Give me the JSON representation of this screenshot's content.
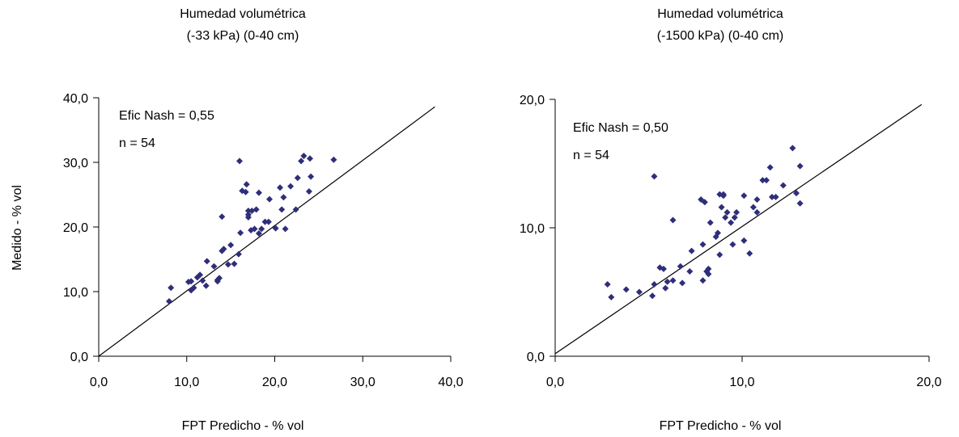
{
  "chart_data": [
    {
      "type": "scatter",
      "title": [
        "Humedad volumétrica",
        "(-33 kPa) (0-40 cm)"
      ],
      "xlabel": "FPT Predicho - % vol",
      "ylabel": "Medido - % vol",
      "xlim": [
        0,
        40
      ],
      "ylim": [
        0,
        40
      ],
      "xticks": [
        "0,0",
        "10,0",
        "20,0",
        "30,0",
        "40,0"
      ],
      "yticks": [
        "0,0",
        "10,0",
        "20,0",
        "30,0",
        "40,0"
      ],
      "annotations": [
        "Efic Nash = 0,55",
        "n = 54"
      ],
      "line": {
        "x": [
          0,
          38.2
        ],
        "y": [
          0,
          38.6
        ]
      },
      "marker_color": "#2e2e7a",
      "points": [
        [
          8.0,
          8.5
        ],
        [
          8.2,
          10.6
        ],
        [
          10.2,
          11.5
        ],
        [
          10.5,
          10.2
        ],
        [
          10.8,
          10.6
        ],
        [
          10.5,
          11.6
        ],
        [
          11.2,
          12.2
        ],
        [
          11.5,
          12.6
        ],
        [
          11.8,
          11.7
        ],
        [
          12.2,
          10.9
        ],
        [
          12.3,
          14.7
        ],
        [
          13.1,
          13.9
        ],
        [
          13.5,
          11.6
        ],
        [
          13.7,
          12.1
        ],
        [
          13.5,
          11.8
        ],
        [
          14.0,
          16.3
        ],
        [
          14.2,
          16.6
        ],
        [
          14.7,
          14.2
        ],
        [
          15.0,
          17.2
        ],
        [
          15.4,
          14.3
        ],
        [
          15.9,
          15.8
        ],
        [
          14.0,
          21.6
        ],
        [
          16.0,
          30.2
        ],
        [
          16.3,
          25.6
        ],
        [
          16.1,
          19.1
        ],
        [
          16.8,
          26.6
        ],
        [
          16.7,
          25.4
        ],
        [
          17.0,
          21.5
        ],
        [
          17.0,
          22.5
        ],
        [
          17.4,
          22.5
        ],
        [
          17.0,
          21.9
        ],
        [
          17.3,
          19.5
        ],
        [
          17.7,
          19.7
        ],
        [
          17.9,
          22.7
        ],
        [
          18.2,
          25.3
        ],
        [
          18.2,
          19.0
        ],
        [
          18.5,
          19.7
        ],
        [
          18.9,
          20.8
        ],
        [
          19.3,
          20.8
        ],
        [
          19.4,
          24.3
        ],
        [
          20.1,
          19.8
        ],
        [
          20.6,
          26.1
        ],
        [
          20.8,
          22.7
        ],
        [
          21.0,
          24.6
        ],
        [
          21.2,
          19.7
        ],
        [
          21.8,
          26.3
        ],
        [
          22.4,
          22.7
        ],
        [
          22.6,
          27.6
        ],
        [
          23.0,
          30.2
        ],
        [
          23.3,
          31.0
        ],
        [
          24.0,
          30.6
        ],
        [
          23.9,
          25.5
        ],
        [
          24.1,
          27.8
        ],
        [
          26.7,
          30.4
        ]
      ]
    },
    {
      "type": "scatter",
      "title": [
        "Humedad volumétrica",
        "(-1500 kPa) (0-40 cm)"
      ],
      "xlabel": "FPT Predicho - % vol",
      "ylabel": "",
      "xlim": [
        0,
        20
      ],
      "ylim": [
        0,
        20
      ],
      "xticks": [
        "0,0",
        "10,0",
        "20,0"
      ],
      "yticks": [
        "0,0",
        "10,0",
        "20,0"
      ],
      "annotations": [
        "Efic Nash = 0,50",
        "n = 54"
      ],
      "line": {
        "x": [
          0,
          19.6
        ],
        "y": [
          0.2,
          19.6
        ]
      },
      "marker_color": "#2e2e7a",
      "points": [
        [
          2.8,
          5.6
        ],
        [
          3.0,
          4.6
        ],
        [
          3.8,
          5.2
        ],
        [
          4.5,
          5.0
        ],
        [
          5.2,
          4.7
        ],
        [
          5.3,
          5.6
        ],
        [
          5.6,
          6.9
        ],
        [
          5.8,
          6.8
        ],
        [
          5.9,
          5.3
        ],
        [
          6.0,
          5.8
        ],
        [
          5.3,
          14.0
        ],
        [
          6.3,
          10.6
        ],
        [
          6.3,
          5.9
        ],
        [
          6.7,
          7.0
        ],
        [
          6.8,
          5.7
        ],
        [
          7.2,
          6.6
        ],
        [
          7.3,
          8.2
        ],
        [
          7.8,
          12.2
        ],
        [
          7.9,
          5.9
        ],
        [
          7.9,
          8.7
        ],
        [
          8.0,
          12.0
        ],
        [
          8.1,
          6.6
        ],
        [
          8.2,
          6.4
        ],
        [
          8.2,
          6.8
        ],
        [
          8.3,
          10.4
        ],
        [
          8.6,
          9.3
        ],
        [
          8.7,
          9.6
        ],
        [
          8.8,
          12.6
        ],
        [
          8.8,
          7.9
        ],
        [
          8.9,
          11.6
        ],
        [
          9.0,
          12.5
        ],
        [
          9.0,
          12.6
        ],
        [
          9.1,
          10.8
        ],
        [
          9.2,
          11.2
        ],
        [
          9.4,
          10.4
        ],
        [
          9.5,
          8.7
        ],
        [
          9.6,
          10.8
        ],
        [
          9.7,
          11.2
        ],
        [
          10.1,
          12.5
        ],
        [
          10.1,
          9.0
        ],
        [
          10.4,
          8.0
        ],
        [
          10.6,
          11.6
        ],
        [
          10.8,
          11.2
        ],
        [
          10.8,
          12.2
        ],
        [
          11.1,
          13.7
        ],
        [
          11.3,
          13.7
        ],
        [
          11.5,
          14.7
        ],
        [
          11.6,
          12.4
        ],
        [
          11.8,
          12.4
        ],
        [
          12.2,
          13.3
        ],
        [
          12.7,
          16.2
        ],
        [
          12.9,
          12.7
        ],
        [
          13.1,
          14.8
        ],
        [
          13.1,
          11.9
        ]
      ]
    }
  ]
}
